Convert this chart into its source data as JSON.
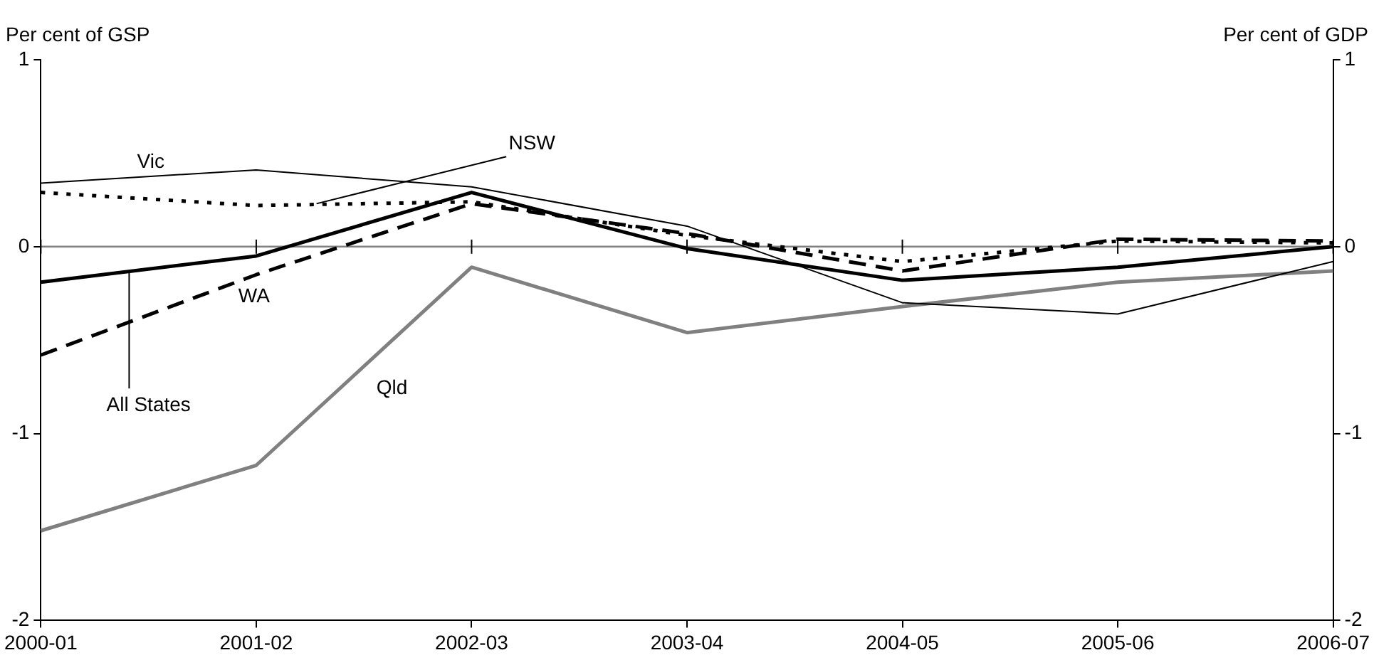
{
  "chart_data": {
    "type": "line",
    "ylabel": "Per cent of GSP",
    "y2label": "Per cent of GDP",
    "categories": [
      "2000-01",
      "2001-02",
      "2002-03",
      "2003-04",
      "2004-05",
      "2005-06",
      "2006-07"
    ],
    "series": [
      {
        "name": "Vic",
        "color": "#000000",
        "values": [
          0.34,
          0.41,
          0.32,
          0.11,
          -0.3,
          -0.36,
          -0.08
        ]
      },
      {
        "name": "NSW",
        "color": "#000000",
        "line_style": "dotted",
        "values": [
          0.29,
          0.22,
          0.24,
          0.06,
          -0.08,
          0.03,
          0.02
        ]
      },
      {
        "name": "All States",
        "color": "#000000",
        "values": [
          -0.19,
          -0.05,
          0.29,
          -0.01,
          -0.18,
          -0.11,
          0
        ]
      },
      {
        "name": "WA",
        "color": "#000000",
        "line_style": "dashed",
        "values": [
          -0.58,
          -0.15,
          0.23,
          0.07,
          -0.13,
          0.04,
          0.03
        ]
      },
      {
        "name": "Qld",
        "color": "#808080",
        "values": [
          -1.52,
          -1.17,
          -0.11,
          -0.46,
          -0.32,
          -0.19,
          -0.13
        ]
      }
    ],
    "ylim": [
      -2,
      1
    ],
    "yticks": [
      -2,
      -1,
      0,
      1
    ],
    "y2lim": [
      -2,
      1
    ],
    "y2ticks": [
      -2,
      -1,
      0,
      1
    ],
    "ref_lines": [
      {
        "axis": "y",
        "value": 0,
        "color": "#808080"
      }
    ],
    "grid": false,
    "legend": false,
    "marker": "none",
    "line_style": "solid"
  }
}
